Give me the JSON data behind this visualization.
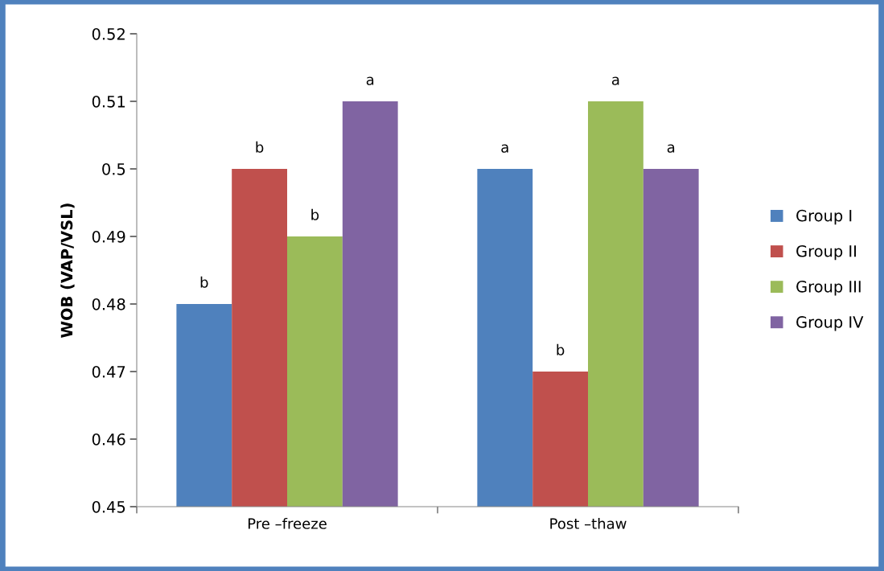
{
  "chart_data": {
    "type": "bar",
    "ylabel": "WOB (VAP/VSL)",
    "categories": [
      "Pre –freeze",
      "Post –thaw"
    ],
    "series": [
      {
        "name": "Group I",
        "color": "#4f81bd",
        "values": [
          0.48,
          0.5
        ],
        "value_labels": [
          "b",
          "a"
        ]
      },
      {
        "name": "Group II",
        "color": "#c0504d",
        "values": [
          0.5,
          0.47
        ],
        "value_labels": [
          "b",
          "b"
        ]
      },
      {
        "name": "Group III",
        "color": "#9bbb59",
        "values": [
          0.49,
          0.51
        ],
        "value_labels": [
          "b",
          "a"
        ]
      },
      {
        "name": "Group IV",
        "color": "#8064a2",
        "values": [
          0.51,
          0.5
        ],
        "value_labels": [
          "a",
          "a"
        ]
      }
    ],
    "ylim": [
      0.45,
      0.52
    ],
    "yticks": [
      0.45,
      0.46,
      0.47,
      0.48,
      0.49,
      0.5,
      0.51,
      0.52
    ],
    "grid": false,
    "legend": "right"
  }
}
